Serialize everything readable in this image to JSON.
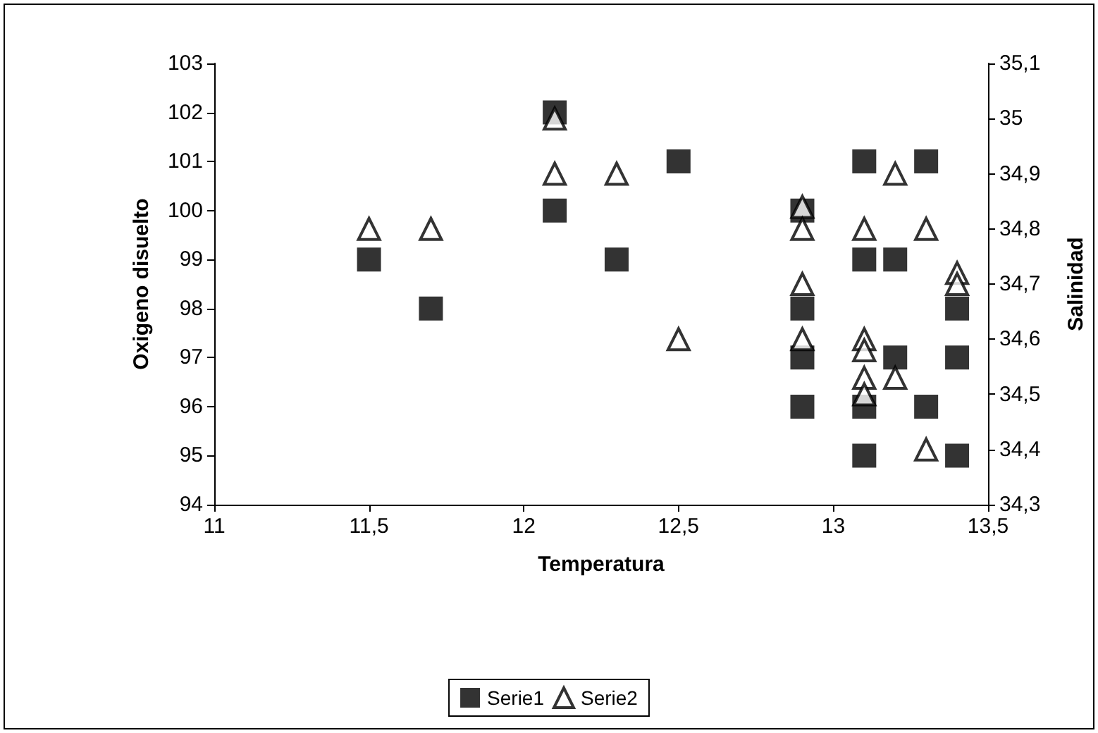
{
  "chart_data": {
    "type": "scatter",
    "xlabel": "Temperatura",
    "ylabel": "Oxigeno disuelto",
    "y2label": "Salinidad",
    "xlim": [
      11,
      13.5
    ],
    "xticks": [
      11,
      {
        "value": 11.5,
        "label": "11,5"
      },
      12,
      {
        "value": 12.5,
        "label": "12,5"
      },
      13,
      {
        "value": 13.5,
        "label": "13,5"
      }
    ],
    "ylim": [
      94,
      103
    ],
    "yticks": [
      94,
      95,
      96,
      97,
      98,
      99,
      100,
      101,
      102,
      103
    ],
    "y2lim": [
      34.3,
      35.1
    ],
    "y2ticks": [
      {
        "value": 34.3,
        "label": "34,3"
      },
      {
        "value": 34.4,
        "label": "34,4"
      },
      {
        "value": 34.5,
        "label": "34,5"
      },
      {
        "value": 34.6,
        "label": "34,6"
      },
      {
        "value": 34.7,
        "label": "34,7"
      },
      {
        "value": 34.8,
        "label": "34,8"
      },
      {
        "value": 34.9,
        "label": "34,9"
      },
      35,
      {
        "value": 35.1,
        "label": "35,1"
      }
    ],
    "grid": false,
    "legend": "bottom",
    "series": [
      {
        "name": "Serie1",
        "color": "#000000",
        "marker": "square",
        "x": [
          11.5,
          11.7,
          12.1,
          12.1,
          12.3,
          12.5,
          12.9,
          12.9,
          12.9,
          12.9,
          13.1,
          13.1,
          13.1,
          13.1,
          13.2,
          13.2,
          13.3,
          13.3,
          13.4,
          13.4,
          13.4
        ],
        "values": [
          99,
          98,
          102,
          100,
          99,
          101,
          100,
          98,
          97,
          96,
          101,
          99,
          96,
          95,
          99,
          97,
          101,
          96,
          98,
          97,
          95
        ]
      },
      {
        "name": "Serie2",
        "color": "#000000",
        "marker": "triangle",
        "axis": "y2",
        "x": [
          11.5,
          11.7,
          12.1,
          12.1,
          12.3,
          12.5,
          12.9,
          12.9,
          12.9,
          12.9,
          13.1,
          13.1,
          13.1,
          13.1,
          13.1,
          13.2,
          13.2,
          13.3,
          13.3,
          13.4,
          13.4
        ],
        "values": [
          34.8,
          34.8,
          35.0,
          34.9,
          34.9,
          34.6,
          34.84,
          34.8,
          34.7,
          34.6,
          34.8,
          34.6,
          34.58,
          34.53,
          34.5,
          34.9,
          34.53,
          34.8,
          34.4,
          34.72,
          34.7
        ]
      }
    ]
  }
}
